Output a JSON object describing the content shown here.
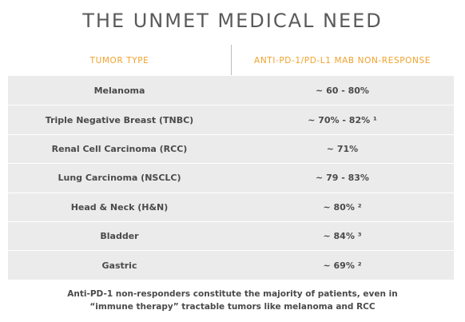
{
  "title": "THE UNMET MEDICAL NEED",
  "table": {
    "headers": {
      "tumor_type": "TUMOR TYPE",
      "non_response": "ANTI-PD-1/PD-L1 MAB NON-RESPONSE"
    },
    "rows": [
      {
        "tumor": "Melanoma",
        "rate": "~ 60 - 80%"
      },
      {
        "tumor": "Triple Negative Breast (TNBC)",
        "rate": "~ 70% - 82% ¹"
      },
      {
        "tumor": "Renal Cell Carcinoma (RCC)",
        "rate": "~ 71%"
      },
      {
        "tumor": "Lung Carcinoma (NSCLC)",
        "rate": "~ 79 - 83%"
      },
      {
        "tumor": "Head & Neck (H&N)",
        "rate": "~ 80% ²"
      },
      {
        "tumor": "Bladder",
        "rate": "~ 84% ³"
      },
      {
        "tumor": "Gastric",
        "rate": "~ 69% ²"
      }
    ]
  },
  "footer": {
    "line1": "Anti-PD-1 non-responders constitute the majority of patients, even in",
    "line2": "“immune therapy” tractable tumors like melanoma and RCC"
  },
  "colors": {
    "accent": "#f0a22e",
    "row_background": "#ebebeb",
    "text": "#4a4a4a"
  }
}
